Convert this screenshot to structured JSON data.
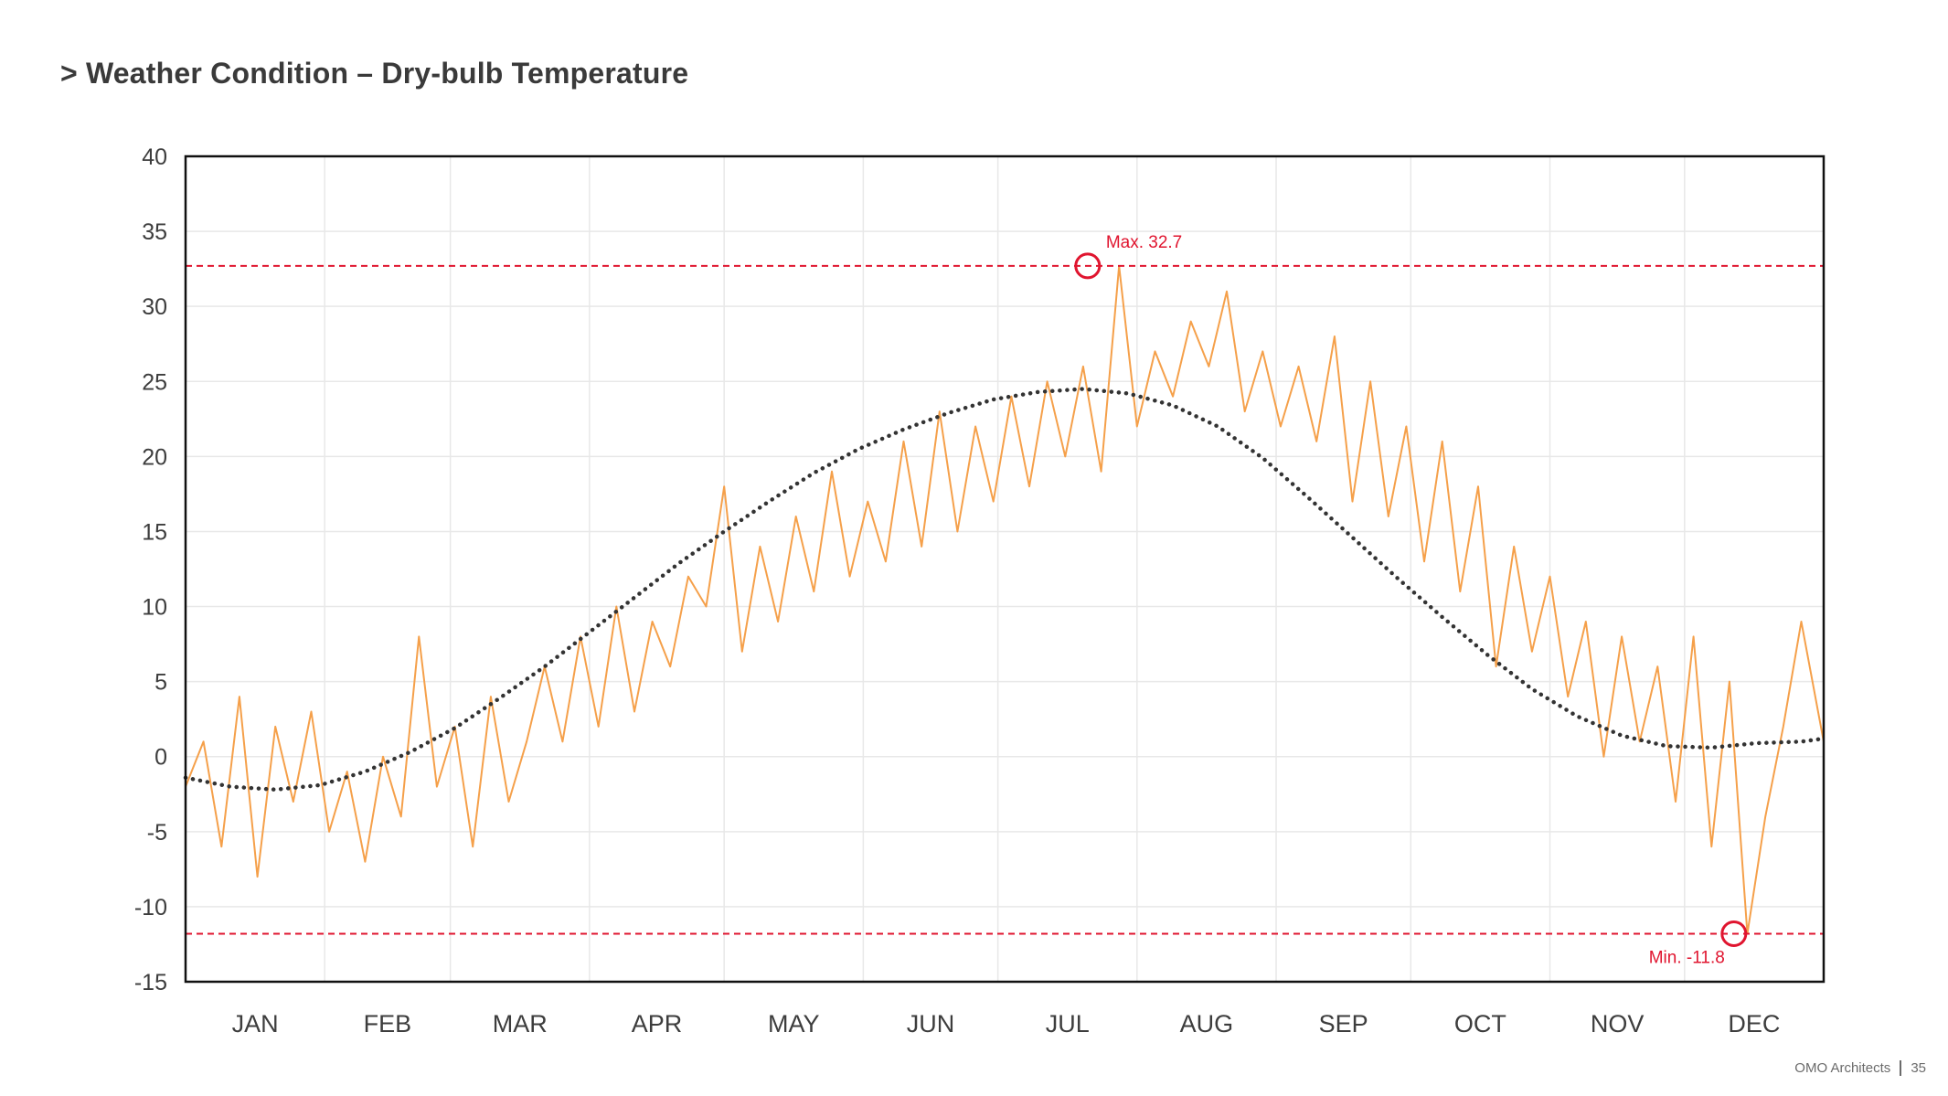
{
  "page": {
    "title": "> Weather Condition – Dry-bulb Temperature",
    "footer_company": "OMO Architects",
    "page_number": "35"
  },
  "chart_data": {
    "type": "line",
    "title": "",
    "xlabel": "",
    "ylabel": "",
    "ylim": [
      -15,
      40
    ],
    "yticks": [
      "40",
      "35",
      "30",
      "25",
      "20",
      "15",
      "10",
      "5",
      "0",
      "-5",
      "-10",
      "-15"
    ],
    "ytick_values": [
      40,
      35,
      30,
      25,
      20,
      15,
      10,
      5,
      0,
      -5,
      -10,
      -15
    ],
    "categories": [
      "JAN",
      "FEB",
      "MAR",
      "APR",
      "MAY",
      "JUN",
      "JUL",
      "AUG",
      "SEP",
      "OCT",
      "NOV",
      "DEC"
    ],
    "grid": true,
    "series": [
      {
        "kind": "hourly-temperature",
        "color": "#f5a04a",
        "x": [
          0,
          4,
          8,
          12,
          16,
          20,
          24,
          28,
          32,
          36,
          40,
          44,
          48,
          52,
          56,
          60,
          64,
          68,
          72,
          76,
          80,
          84,
          88,
          92,
          96,
          100,
          104,
          108,
          112,
          116,
          120,
          124,
          128,
          132,
          136,
          140,
          144,
          148,
          152,
          156,
          160,
          164,
          168,
          172,
          176,
          180,
          184,
          188,
          192,
          196,
          200,
          204,
          208,
          212,
          216,
          220,
          224,
          228,
          232,
          236,
          240,
          244,
          248,
          252,
          256,
          260,
          264,
          268,
          272,
          276,
          280,
          284,
          288,
          292,
          296,
          300,
          304,
          308,
          312,
          316,
          320,
          324,
          328,
          332,
          336,
          340,
          344,
          348,
          352,
          356,
          360,
          365
        ],
        "values": [
          -2.0,
          1.0,
          -6.0,
          4.0,
          -8.0,
          2.0,
          -3.0,
          3.0,
          -5.0,
          -1.0,
          -7.0,
          0.0,
          -4.0,
          8.0,
          -2.0,
          2.0,
          -6.0,
          4.0,
          -3.0,
          1.0,
          6.0,
          1.0,
          8.0,
          2.0,
          10.0,
          3.0,
          9.0,
          6.0,
          12.0,
          10.0,
          18.0,
          7.0,
          14.0,
          9.0,
          16.0,
          11.0,
          19.0,
          12.0,
          17.0,
          13.0,
          21.0,
          14.0,
          23.0,
          15.0,
          22.0,
          17.0,
          24.0,
          18.0,
          25.0,
          20.0,
          26.0,
          19.0,
          32.7,
          22.0,
          27.0,
          24.0,
          29.0,
          26.0,
          31.0,
          23.0,
          27.0,
          22.0,
          26.0,
          21.0,
          28.0,
          17.0,
          25.0,
          16.0,
          22.0,
          13.0,
          21.0,
          11.0,
          18.0,
          6.0,
          14.0,
          7.0,
          12.0,
          4.0,
          9.0,
          0.0,
          8.0,
          1.0,
          6.0,
          -3.0,
          8.0,
          -6.0,
          5.0,
          -11.8,
          -4.0,
          2.0,
          9.0,
          1.0
        ]
      },
      {
        "kind": "trend",
        "style": "dotted",
        "color": "#333333",
        "x": [
          0,
          10,
          20,
          30,
          40,
          50,
          60,
          70,
          80,
          90,
          100,
          110,
          120,
          130,
          140,
          150,
          160,
          170,
          180,
          190,
          200,
          210,
          220,
          230,
          240,
          250,
          260,
          270,
          280,
          290,
          300,
          310,
          320,
          330,
          340,
          350,
          360,
          365
        ],
        "values": [
          -1.4,
          -2.0,
          -2.2,
          -1.9,
          -1.0,
          0.3,
          1.9,
          3.9,
          6.0,
          8.3,
          10.6,
          12.9,
          15.0,
          17.0,
          18.9,
          20.5,
          21.8,
          22.9,
          23.8,
          24.3,
          24.5,
          24.2,
          23.4,
          22.0,
          19.9,
          17.3,
          14.6,
          11.9,
          9.3,
          6.8,
          4.5,
          2.7,
          1.4,
          0.7,
          0.6,
          0.9,
          1.0,
          1.2
        ]
      }
    ],
    "reference_lines": [
      {
        "name": "max",
        "value": 32.7,
        "label": "Max. 32.7",
        "color": "#e0152f",
        "day": 201
      },
      {
        "name": "min",
        "value": -11.8,
        "label": "Min. -11.8",
        "color": "#e0152f",
        "day": 345
      }
    ]
  }
}
